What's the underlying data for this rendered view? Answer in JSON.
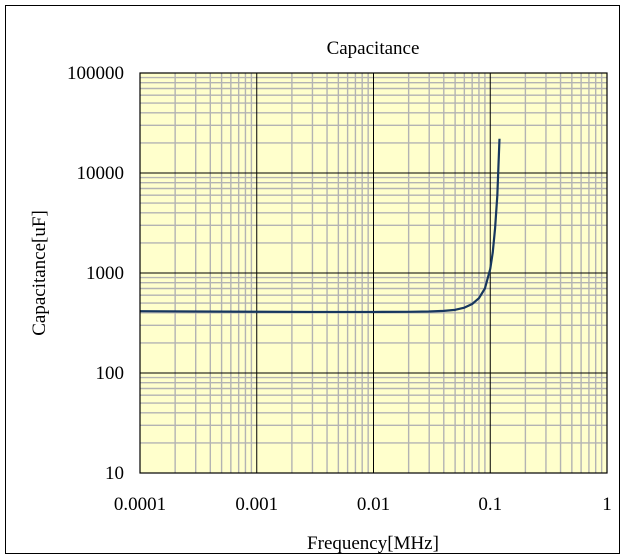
{
  "chart_data": {
    "type": "line",
    "title": "Capacitance",
    "xlabel": "Frequency[MHz]",
    "ylabel": "Capacitance[uF]",
    "x_scale": "log",
    "y_scale": "log",
    "xlim": [
      0.0001,
      1
    ],
    "ylim": [
      10,
      100000
    ],
    "x_ticks": [
      "0.0001",
      "0.001",
      "0.01",
      "0.1",
      "1"
    ],
    "y_ticks": [
      "10",
      "100",
      "1000",
      "10000",
      "100000"
    ],
    "grid": true,
    "legend": "none",
    "series": [
      {
        "x": [
          0.0001,
          0.0003,
          0.001,
          0.003,
          0.01,
          0.02,
          0.03,
          0.04,
          0.05,
          0.06,
          0.07,
          0.08,
          0.09,
          0.1,
          0.105,
          0.11,
          0.115,
          0.12
        ],
        "y": [
          415,
          412,
          410,
          408,
          408,
          409,
          412,
          418,
          428,
          450,
          490,
          560,
          700,
          1100,
          1600,
          2800,
          6000,
          22000
        ]
      }
    ],
    "colors": {
      "line": "#17375e",
      "plot_bg": "#ffffcc",
      "grid_major": "#000000",
      "grid_minor": "#b3b3b3"
    }
  }
}
